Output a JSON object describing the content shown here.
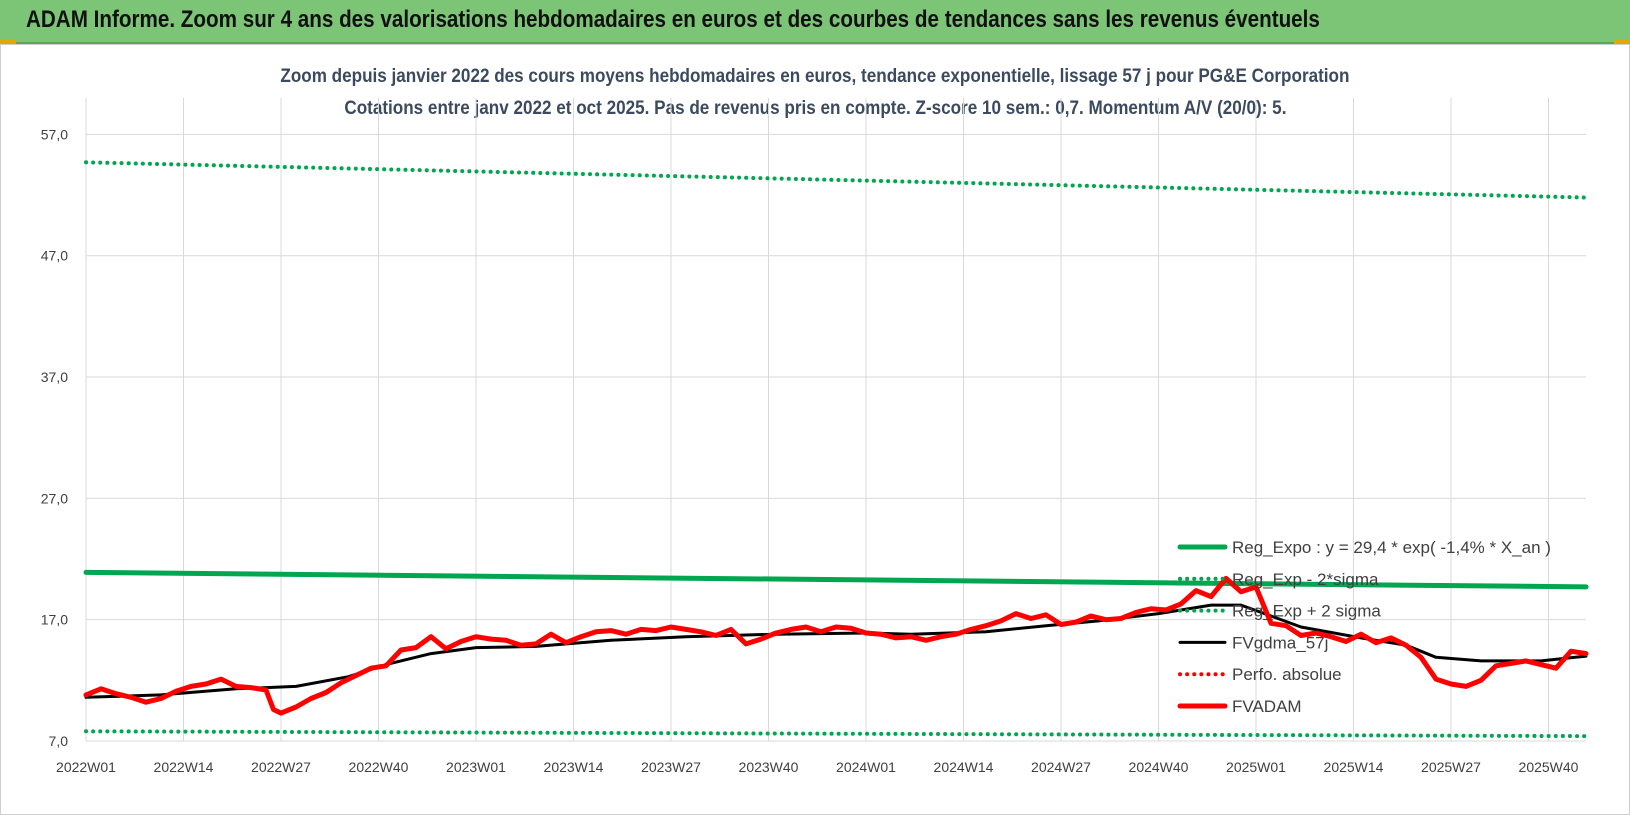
{
  "header": {
    "title": "ADAM Informe. Zoom sur 4 ans des valorisations hebdomadaires en euros et des courbes de tendances sans les revenus éventuels"
  },
  "chart_data": {
    "type": "line",
    "title": "Zoom depuis janvier 2022 des cours moyens hebdomadaires en euros, tendance exponentielle, lissage 57 j pour PG&E Corporation",
    "subtitle": "Cotations entre janv 2022 et oct 2025. Pas de revenus pris en compte. Z-score 10 sem.: 0,7. Momentum A/V (20/0): 5.",
    "xlabel": "",
    "ylabel": "",
    "ylim": [
      7,
      60
    ],
    "y_ticks": [
      "7,0",
      "17,0",
      "27,0",
      "37,0",
      "47,0",
      "57,0"
    ],
    "y_tick_values": [
      7,
      17,
      27,
      37,
      47,
      57
    ],
    "x_ticks": [
      "2022W01",
      "2022W14",
      "2022W27",
      "2022W40",
      "2023W01",
      "2023W14",
      "2023W27",
      "2023W40",
      "2024W01",
      "2024W14",
      "2024W27",
      "2024W40",
      "2025W01",
      "2025W14",
      "2025W27",
      "2025W40"
    ],
    "x_tick_weeks": [
      0,
      13,
      26,
      39,
      52,
      65,
      78,
      91,
      104,
      117,
      130,
      143,
      156,
      169,
      182,
      195
    ],
    "weeks_count": 201,
    "grid": true,
    "legend_position": "bottom-right",
    "colors": {
      "reg_expo": "#00a650",
      "sigma": "#00a650",
      "fvgdma": "#000000",
      "perfo": "#ff0000",
      "fvadam": "#ff0000",
      "grid": "#d9d9d9"
    },
    "series": [
      {
        "name": "Reg_Expo : y = 29,4 * exp( -1,4% *  X_an )",
        "style": "solid-thick",
        "color_key": "reg_expo",
        "points": [
          [
            0,
            20.9
          ],
          [
            200,
            19.7
          ]
        ]
      },
      {
        "name": "Reg_Exp - 2*sigma",
        "style": "dotted",
        "color_key": "sigma",
        "points": [
          [
            0,
            7.8
          ],
          [
            200,
            7.4
          ]
        ]
      },
      {
        "name": "Reg_Exp + 2 sigma",
        "style": "dotted",
        "color_key": "sigma",
        "points": [
          [
            0,
            54.7
          ],
          [
            200,
            51.8
          ]
        ]
      },
      {
        "name": "FVgdma_57j",
        "style": "solid",
        "color_key": "fvgdma",
        "points": [
          [
            0,
            10.6
          ],
          [
            10,
            10.8
          ],
          [
            20,
            11.3
          ],
          [
            28,
            11.5
          ],
          [
            35,
            12.3
          ],
          [
            40,
            13.3
          ],
          [
            46,
            14.2
          ],
          [
            52,
            14.7
          ],
          [
            60,
            14.8
          ],
          [
            70,
            15.3
          ],
          [
            80,
            15.6
          ],
          [
            92,
            15.8
          ],
          [
            104,
            15.9
          ],
          [
            110,
            15.8
          ],
          [
            120,
            16.0
          ],
          [
            128,
            16.5
          ],
          [
            135,
            16.9
          ],
          [
            143,
            17.5
          ],
          [
            150,
            18.2
          ],
          [
            154,
            18.2
          ],
          [
            158,
            17.3
          ],
          [
            162,
            16.4
          ],
          [
            170,
            15.5
          ],
          [
            176,
            14.9
          ],
          [
            180,
            13.9
          ],
          [
            186,
            13.6
          ],
          [
            194,
            13.6
          ],
          [
            200,
            14.0
          ]
        ]
      },
      {
        "name": "Perfo. absolue",
        "style": "dotted",
        "color_key": "perfo",
        "points": []
      },
      {
        "name": "FVADAM",
        "style": "solid-thick",
        "color_key": "fvadam",
        "points": [
          [
            0,
            10.8
          ],
          [
            2,
            11.3
          ],
          [
            4,
            10.9
          ],
          [
            6,
            10.6
          ],
          [
            8,
            10.2
          ],
          [
            10,
            10.5
          ],
          [
            12,
            11.1
          ],
          [
            14,
            11.5
          ],
          [
            16,
            11.7
          ],
          [
            18,
            12.1
          ],
          [
            20,
            11.5
          ],
          [
            22,
            11.4
          ],
          [
            24,
            11.2
          ],
          [
            25,
            9.6
          ],
          [
            26,
            9.3
          ],
          [
            28,
            9.8
          ],
          [
            30,
            10.5
          ],
          [
            32,
            11.0
          ],
          [
            34,
            11.8
          ],
          [
            36,
            12.4
          ],
          [
            38,
            13.0
          ],
          [
            40,
            13.2
          ],
          [
            42,
            14.5
          ],
          [
            44,
            14.7
          ],
          [
            46,
            15.6
          ],
          [
            48,
            14.6
          ],
          [
            50,
            15.2
          ],
          [
            52,
            15.6
          ],
          [
            54,
            15.4
          ],
          [
            56,
            15.3
          ],
          [
            58,
            14.9
          ],
          [
            60,
            15.0
          ],
          [
            62,
            15.8
          ],
          [
            64,
            15.1
          ],
          [
            66,
            15.6
          ],
          [
            68,
            16.0
          ],
          [
            70,
            16.1
          ],
          [
            72,
            15.8
          ],
          [
            74,
            16.2
          ],
          [
            76,
            16.1
          ],
          [
            78,
            16.4
          ],
          [
            80,
            16.2
          ],
          [
            82,
            16.0
          ],
          [
            84,
            15.7
          ],
          [
            86,
            16.2
          ],
          [
            88,
            15.0
          ],
          [
            90,
            15.4
          ],
          [
            92,
            15.9
          ],
          [
            94,
            16.2
          ],
          [
            96,
            16.4
          ],
          [
            98,
            16.0
          ],
          [
            100,
            16.4
          ],
          [
            102,
            16.3
          ],
          [
            104,
            15.9
          ],
          [
            106,
            15.8
          ],
          [
            108,
            15.5
          ],
          [
            110,
            15.6
          ],
          [
            112,
            15.3
          ],
          [
            114,
            15.6
          ],
          [
            116,
            15.8
          ],
          [
            118,
            16.2
          ],
          [
            120,
            16.5
          ],
          [
            122,
            16.9
          ],
          [
            124,
            17.5
          ],
          [
            126,
            17.1
          ],
          [
            128,
            17.4
          ],
          [
            130,
            16.6
          ],
          [
            132,
            16.8
          ],
          [
            134,
            17.3
          ],
          [
            136,
            17.0
          ],
          [
            138,
            17.1
          ],
          [
            140,
            17.6
          ],
          [
            142,
            17.9
          ],
          [
            144,
            17.8
          ],
          [
            146,
            18.3
          ],
          [
            148,
            19.4
          ],
          [
            150,
            18.9
          ],
          [
            152,
            20.4
          ],
          [
            154,
            19.3
          ],
          [
            156,
            19.7
          ],
          [
            158,
            16.7
          ],
          [
            160,
            16.5
          ],
          [
            162,
            15.7
          ],
          [
            164,
            15.9
          ],
          [
            166,
            15.6
          ],
          [
            168,
            15.2
          ],
          [
            170,
            15.8
          ],
          [
            172,
            15.1
          ],
          [
            174,
            15.5
          ],
          [
            176,
            14.9
          ],
          [
            178,
            13.9
          ],
          [
            180,
            12.1
          ],
          [
            182,
            11.7
          ],
          [
            184,
            11.5
          ],
          [
            186,
            12.0
          ],
          [
            188,
            13.2
          ],
          [
            190,
            13.4
          ],
          [
            192,
            13.6
          ],
          [
            194,
            13.3
          ],
          [
            196,
            13.0
          ],
          [
            198,
            14.4
          ],
          [
            200,
            14.2
          ]
        ]
      }
    ]
  }
}
